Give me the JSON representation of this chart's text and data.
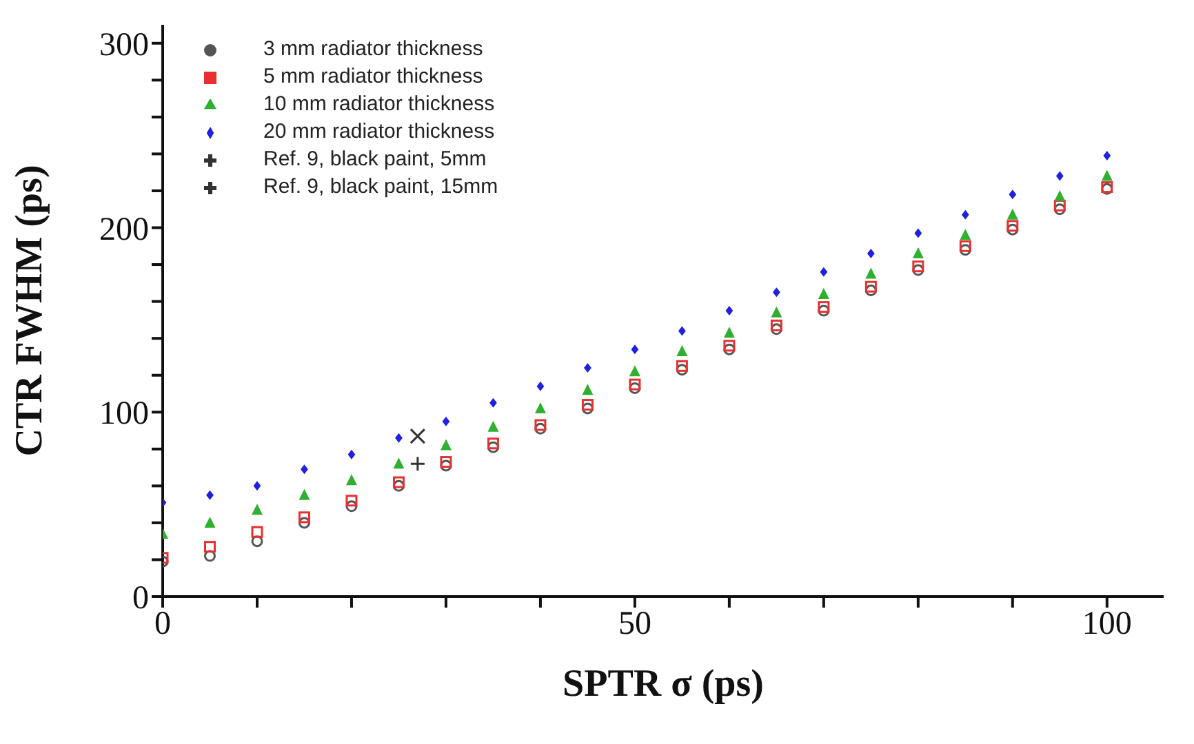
{
  "chart_data": {
    "type": "scatter",
    "xlabel": "SPTR  σ (ps)",
    "ylabel": "CTR FWHM (ps)",
    "xlim": [
      0,
      106
    ],
    "ylim": [
      0,
      310
    ],
    "xticks": [
      0,
      {
        "value": 10,
        "label": null
      },
      {
        "value": 20,
        "label": null
      },
      {
        "value": 30,
        "label": null
      },
      {
        "value": 40,
        "label": null
      },
      50,
      {
        "value": 60,
        "label": null
      },
      {
        "value": 70,
        "label": null
      },
      {
        "value": 80,
        "label": null
      },
      {
        "value": 90,
        "label": null
      },
      100
    ],
    "yticks": [
      0,
      {
        "value": 20,
        "label": null
      },
      {
        "value": 40,
        "label": null
      },
      {
        "value": 60,
        "label": null
      },
      {
        "value": 80,
        "label": null
      },
      100,
      {
        "value": 120,
        "label": null
      },
      {
        "value": 140,
        "label": null
      },
      {
        "value": 160,
        "label": null
      },
      {
        "value": 180,
        "label": null
      },
      200,
      {
        "value": 220,
        "label": null
      },
      {
        "value": 240,
        "label": null
      },
      {
        "value": 260,
        "label": null
      },
      {
        "value": 280,
        "label": null
      },
      300
    ],
    "legend": "top left",
    "grid": false,
    "x": [
      0,
      5,
      10,
      15,
      20,
      25,
      30,
      35,
      40,
      45,
      50,
      55,
      60,
      65,
      70,
      75,
      80,
      85,
      90,
      95,
      100
    ],
    "series": [
      {
        "name": "3 mm radiator thickness",
        "color": "#555555",
        "marker": "circle",
        "values": [
          19,
          22,
          30,
          40,
          49,
          60,
          71,
          81,
          91,
          102,
          113,
          123,
          134,
          145,
          155,
          166,
          177,
          188,
          199,
          210,
          221
        ]
      },
      {
        "name": "5 mm radiator thickness",
        "color": "#e83030",
        "marker": "square",
        "values": [
          21,
          27,
          35,
          43,
          52,
          62,
          73,
          83,
          93,
          104,
          115,
          125,
          136,
          147,
          157,
          168,
          179,
          190,
          201,
          212,
          222
        ]
      },
      {
        "name": "10 mm radiator thickness",
        "color": "#30b030",
        "marker": "triangle",
        "values": [
          34,
          40,
          47,
          55,
          63,
          72,
          82,
          92,
          102,
          112,
          122,
          133,
          143,
          154,
          164,
          175,
          186,
          196,
          207,
          217,
          228
        ]
      },
      {
        "name": "20 mm radiator thickness",
        "color": "#2020e0",
        "marker": "diamond",
        "values": [
          51,
          55,
          60,
          69,
          77,
          86,
          95,
          105,
          114,
          124,
          134,
          144,
          155,
          165,
          176,
          186,
          197,
          207,
          218,
          228,
          239
        ]
      },
      {
        "name": "Ref. 9, black paint,  5mm",
        "color": "#333333",
        "marker": "cross",
        "x": [
          27
        ],
        "values": [
          72
        ]
      },
      {
        "name": "Ref. 9, black paint, 15mm",
        "color": "#333333",
        "marker": "x",
        "x": [
          27
        ],
        "values": [
          87
        ]
      }
    ]
  }
}
